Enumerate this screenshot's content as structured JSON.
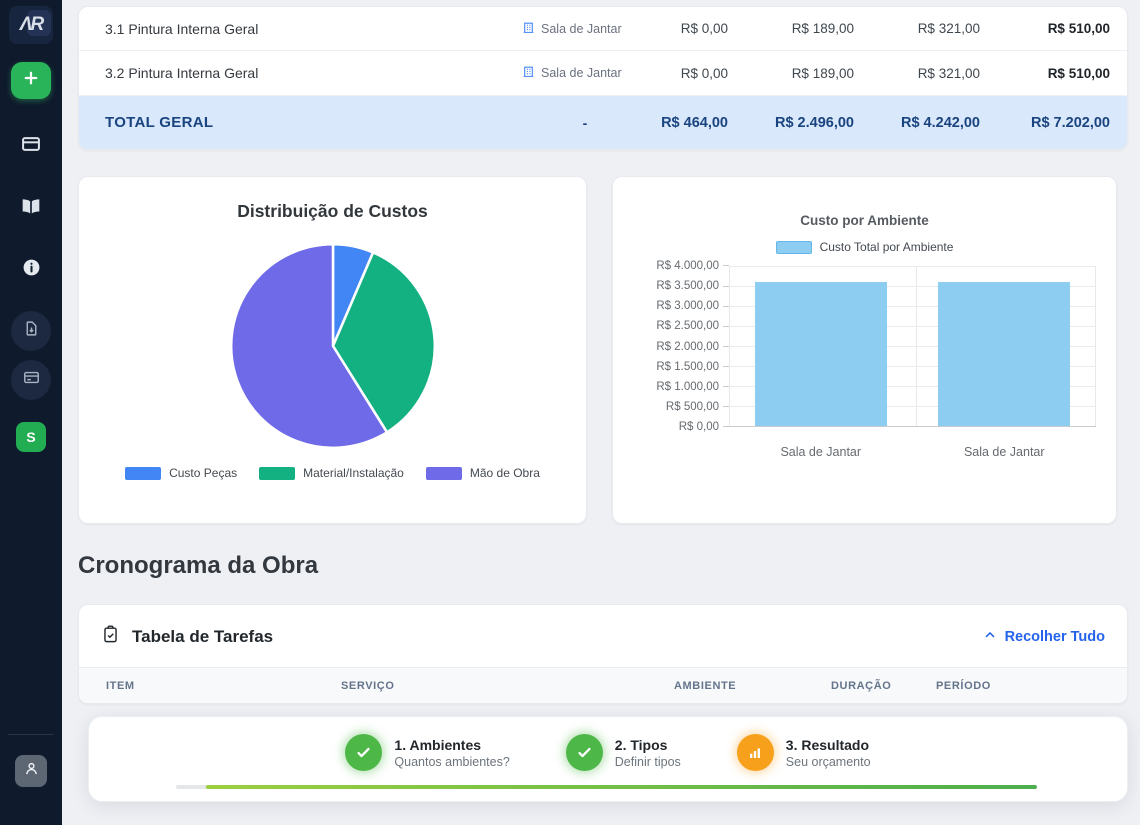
{
  "theme": {
    "sidebar_bg": "#0f1a2c",
    "accent_green": "#2ab45a",
    "link_blue": "#2563eb",
    "total_row_bg": "#d9e8fa",
    "total_text": "#1a4480",
    "step_green": "#4db748",
    "step_orange": "#f7a01b"
  },
  "sidebar": {
    "logo_text": "ΛR",
    "icons": [
      "plus-icon",
      "credit-card-icon",
      "book-icon",
      "info-icon",
      "document-download-icon",
      "credit-card-icon",
      "user-icon"
    ],
    "workspace_initial": "S"
  },
  "summary_table": {
    "rows": [
      {
        "item": "3.1 Pintura Interna Geral",
        "ambiente": "Sala de Jantar",
        "values": [
          "R$ 0,00",
          "R$ 189,00",
          "R$ 321,00",
          "R$ 510,00"
        ]
      },
      {
        "item": "3.2 Pintura Interna Geral",
        "ambiente": "Sala de Jantar",
        "values": [
          "R$ 0,00",
          "R$ 189,00",
          "R$ 321,00",
          "R$ 510,00"
        ]
      }
    ],
    "total": {
      "label": "TOTAL GERAL",
      "dash": "-",
      "values": [
        "R$ 464,00",
        "R$ 2.496,00",
        "R$ 4.242,00",
        "R$ 7.202,00"
      ]
    }
  },
  "chart_data": [
    {
      "type": "pie",
      "title": "Distribuição de Custos",
      "labels": [
        "Custo Peças",
        "Material/Instalação",
        "Mão de Obra"
      ],
      "values": [
        464,
        2496,
        4242
      ],
      "colors": [
        "#4285f4",
        "#13b181",
        "#6f6ae8"
      ],
      "legend_position": "bottom"
    },
    {
      "type": "bar",
      "title": "Custo por Ambiente",
      "legend": "Custo Total por Ambiente",
      "categories": [
        "Sala de Jantar",
        "Sala de Jantar"
      ],
      "values": [
        3601,
        3601
      ],
      "ylim": [
        0,
        4000
      ],
      "ytick_labels": [
        "R$ 4.000,00",
        "R$ 3.500,00",
        "R$ 3.000,00",
        "R$ 2.500,00",
        "R$ 2.000,00",
        "R$ 1.500,00",
        "R$ 1.000,00",
        "R$ 500,00",
        "R$ 0,00"
      ],
      "bar_color": "#8dcdf1",
      "grid": true,
      "legend_position": "top"
    }
  ],
  "schedule": {
    "heading": "Cronograma da Obra",
    "card_title": "Tabela de Tarefas",
    "collapse_label": "Recolher Tudo",
    "columns": [
      "ITEM",
      "SERVIÇO",
      "AMBIENTE",
      "DURAÇÃO",
      "PERÍODO"
    ]
  },
  "wizard": {
    "steps": [
      {
        "title": "1. Ambientes",
        "subtitle": "Quantos ambientes?",
        "state": "done"
      },
      {
        "title": "2. Tipos",
        "subtitle": "Definir tipos",
        "state": "done"
      },
      {
        "title": "3. Resultado",
        "subtitle": "Seu orçamento",
        "state": "active"
      }
    ],
    "progress_percent": 96.5
  }
}
